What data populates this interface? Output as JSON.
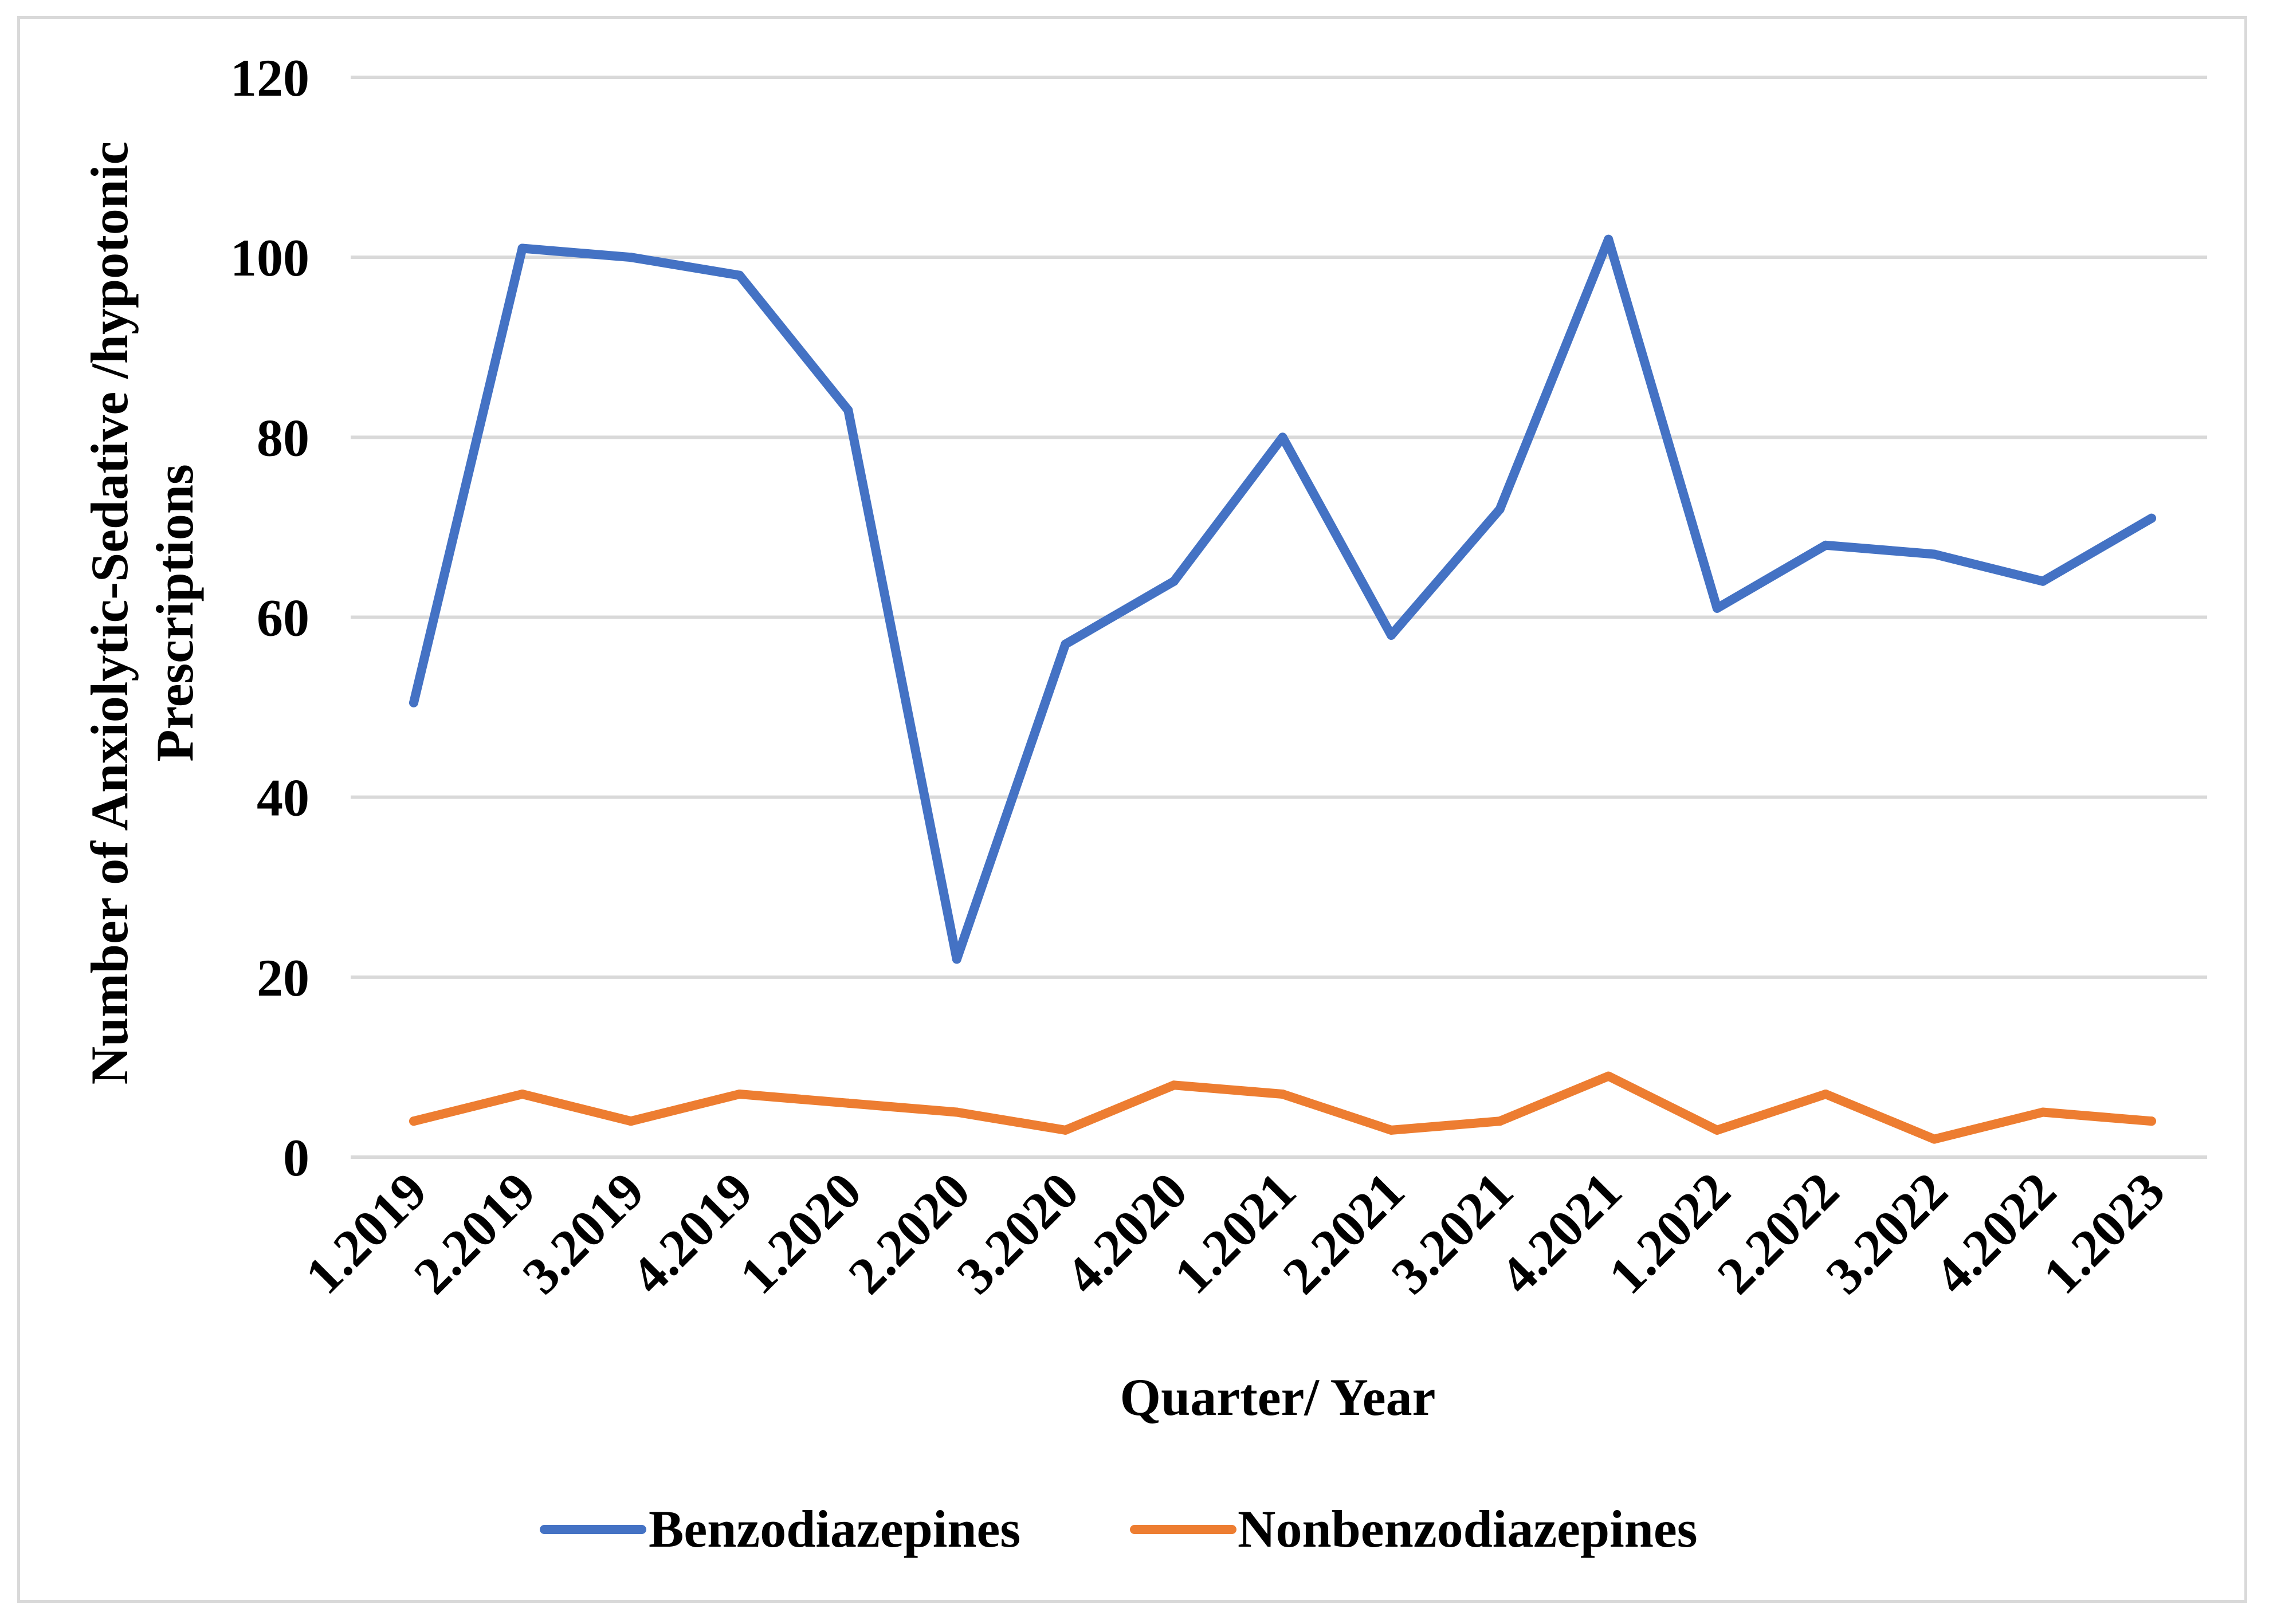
{
  "chart_data": {
    "type": "line",
    "title": "",
    "xlabel": "Quarter/ Year",
    "ylabel_lines": [
      "Number of Anxiolytic-Sedative /hypotonic",
      "Prescriptions"
    ],
    "ylim": [
      0,
      120
    ],
    "yticks": [
      0,
      20,
      40,
      60,
      80,
      100,
      120
    ],
    "ytick_labels": [
      "0",
      "20",
      "40",
      "60",
      "80",
      "100",
      "120"
    ],
    "categories": [
      "1.2019",
      "2.2019",
      "3.2019",
      "4.2019",
      "1.2020",
      "2.2020",
      "3.2020",
      "4.2020",
      "1.2021",
      "2.2021",
      "3.2021",
      "4.2021",
      "1.2022",
      "2.2022",
      "3.2022",
      "4.2022",
      "1.2023"
    ],
    "series": [
      {
        "name": "Benzodiazepines",
        "color": "#4472c4",
        "values": [
          50.5,
          101,
          100,
          98,
          83,
          22,
          57,
          64,
          80,
          58,
          72,
          102,
          61,
          68,
          67,
          64,
          71
        ]
      },
      {
        "name": "Nonbenzodiazepines",
        "color": "#ed7d31",
        "values": [
          4,
          7,
          4,
          7,
          6,
          5,
          3,
          8,
          7,
          3,
          4,
          9,
          3,
          7,
          2,
          5,
          4
        ]
      }
    ],
    "grid": true,
    "gridline_color": "#d9d9d9",
    "legend_position": "bottom"
  }
}
